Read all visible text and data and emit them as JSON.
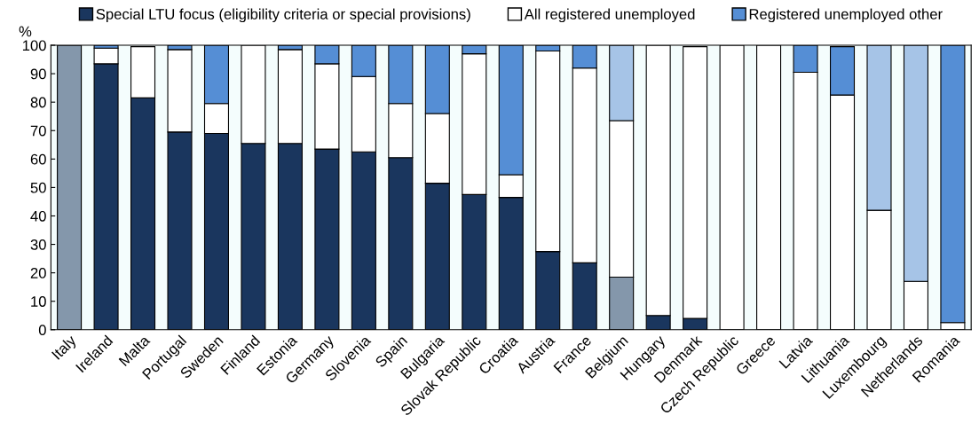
{
  "chart_data": {
    "type": "bar",
    "stacked": true,
    "ylabel": "%",
    "categories": [
      "Italy",
      "Ireland",
      "Malta",
      "Portugal",
      "Sweden",
      "Finland",
      "Estonia",
      "Germany",
      "Slovenia",
      "Spain",
      "Bulgaria",
      "Slovak Republic",
      "Croatia",
      "Austria",
      "France",
      "Belgium",
      "Hungary",
      "Denmark",
      "Czech Republic",
      "Greece",
      "Latvia",
      "Lithuania",
      "Luxembourg",
      "Netherlands",
      "Romania"
    ],
    "series": [
      {
        "name": "Special LTU focus (eligibility criteria or special provisions)",
        "color": "#1a365e",
        "colors": [
          "#8497ab",
          "#1a365e",
          "#1a365e",
          "#1a365e",
          "#1a365e",
          "#1a365e",
          "#1a365e",
          "#1a365e",
          "#1a365e",
          "#1a365e",
          "#1a365e",
          "#1a365e",
          "#1a365e",
          "#1a365e",
          "#1a365e",
          "#8497ab",
          "#1a365e",
          "#1a365e",
          "#1a365e",
          "#1a365e",
          "#1a365e",
          "#1a365e",
          "#1a365e",
          "#1a365e",
          "#1a365e"
        ],
        "values": [
          100,
          93.5,
          81.5,
          69.5,
          69,
          65.5,
          65.5,
          63.5,
          62.5,
          60.5,
          51.5,
          47.5,
          46.5,
          27.5,
          23.5,
          18.5,
          5,
          4,
          0,
          0,
          0,
          0,
          0,
          0,
          0
        ]
      },
      {
        "name": "All registered unemployed",
        "color": "#ffffff",
        "values": [
          0,
          5.5,
          18,
          29,
          10.5,
          34.5,
          33,
          30,
          26.5,
          19,
          24.5,
          49.5,
          8,
          70.5,
          68.5,
          55,
          95,
          95.5,
          100,
          100,
          90.5,
          82.5,
          42,
          17,
          2.5
        ]
      },
      {
        "name": "Registered unemployed other",
        "color": "#558ed5",
        "colors": [
          "#558ed5",
          "#558ed5",
          "#558ed5",
          "#558ed5",
          "#558ed5",
          "#558ed5",
          "#558ed5",
          "#558ed5",
          "#558ed5",
          "#558ed5",
          "#558ed5",
          "#558ed5",
          "#558ed5",
          "#558ed5",
          "#558ed5",
          "#a6c4e7",
          "#558ed5",
          "#558ed5",
          "#558ed5",
          "#558ed5",
          "#558ed5",
          "#558ed5",
          "#a6c4e7",
          "#a6c4e7",
          "#558ed5"
        ],
        "values": [
          0,
          1,
          null,
          1.5,
          20.5,
          0,
          1.5,
          6.5,
          11,
          20.5,
          24,
          3,
          45.5,
          2,
          8,
          26.5,
          0,
          null,
          0,
          0,
          9.5,
          17,
          58,
          83,
          97.5
        ]
      }
    ],
    "ylim": [
      0,
      100
    ],
    "yticks": [
      0,
      10,
      20,
      30,
      40,
      50,
      60,
      70,
      80,
      90,
      100
    ],
    "grid": false,
    "legend": "top"
  }
}
